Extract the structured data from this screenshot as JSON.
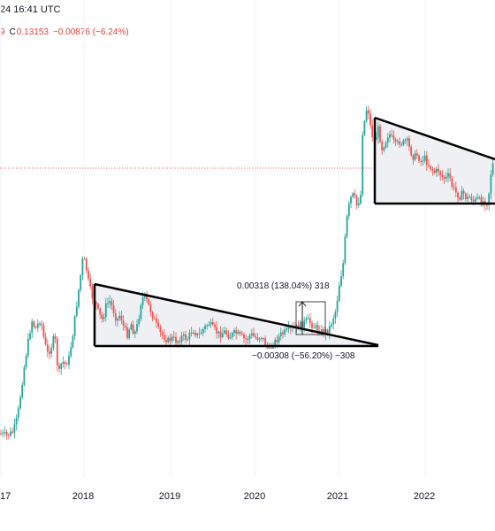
{
  "header": {
    "date_text": "24 16:41 UTC",
    "ohlc": {
      "partial": "9",
      "close_key": "C",
      "close_value": "0.13153",
      "change": "−0.00876 (−6.24%)"
    }
  },
  "colors": {
    "up": "#26a69a",
    "down": "#ef5350",
    "pattern_fill": "#eef0f4",
    "pattern_line": "#000000",
    "price_line": "#ef5350"
  },
  "chart_data": {
    "type": "candlestick",
    "x_axis_labels": [
      "17",
      "2018",
      "2019",
      "2020",
      "2021",
      "2022"
    ],
    "annotations": {
      "measure_up": "0.00318 (138.04%) 318",
      "measure_down": "−0.00308 (−56.20%) −308"
    },
    "patterns": [
      "descending triangle 2018–2020",
      "descending triangle 2021–2022"
    ]
  }
}
